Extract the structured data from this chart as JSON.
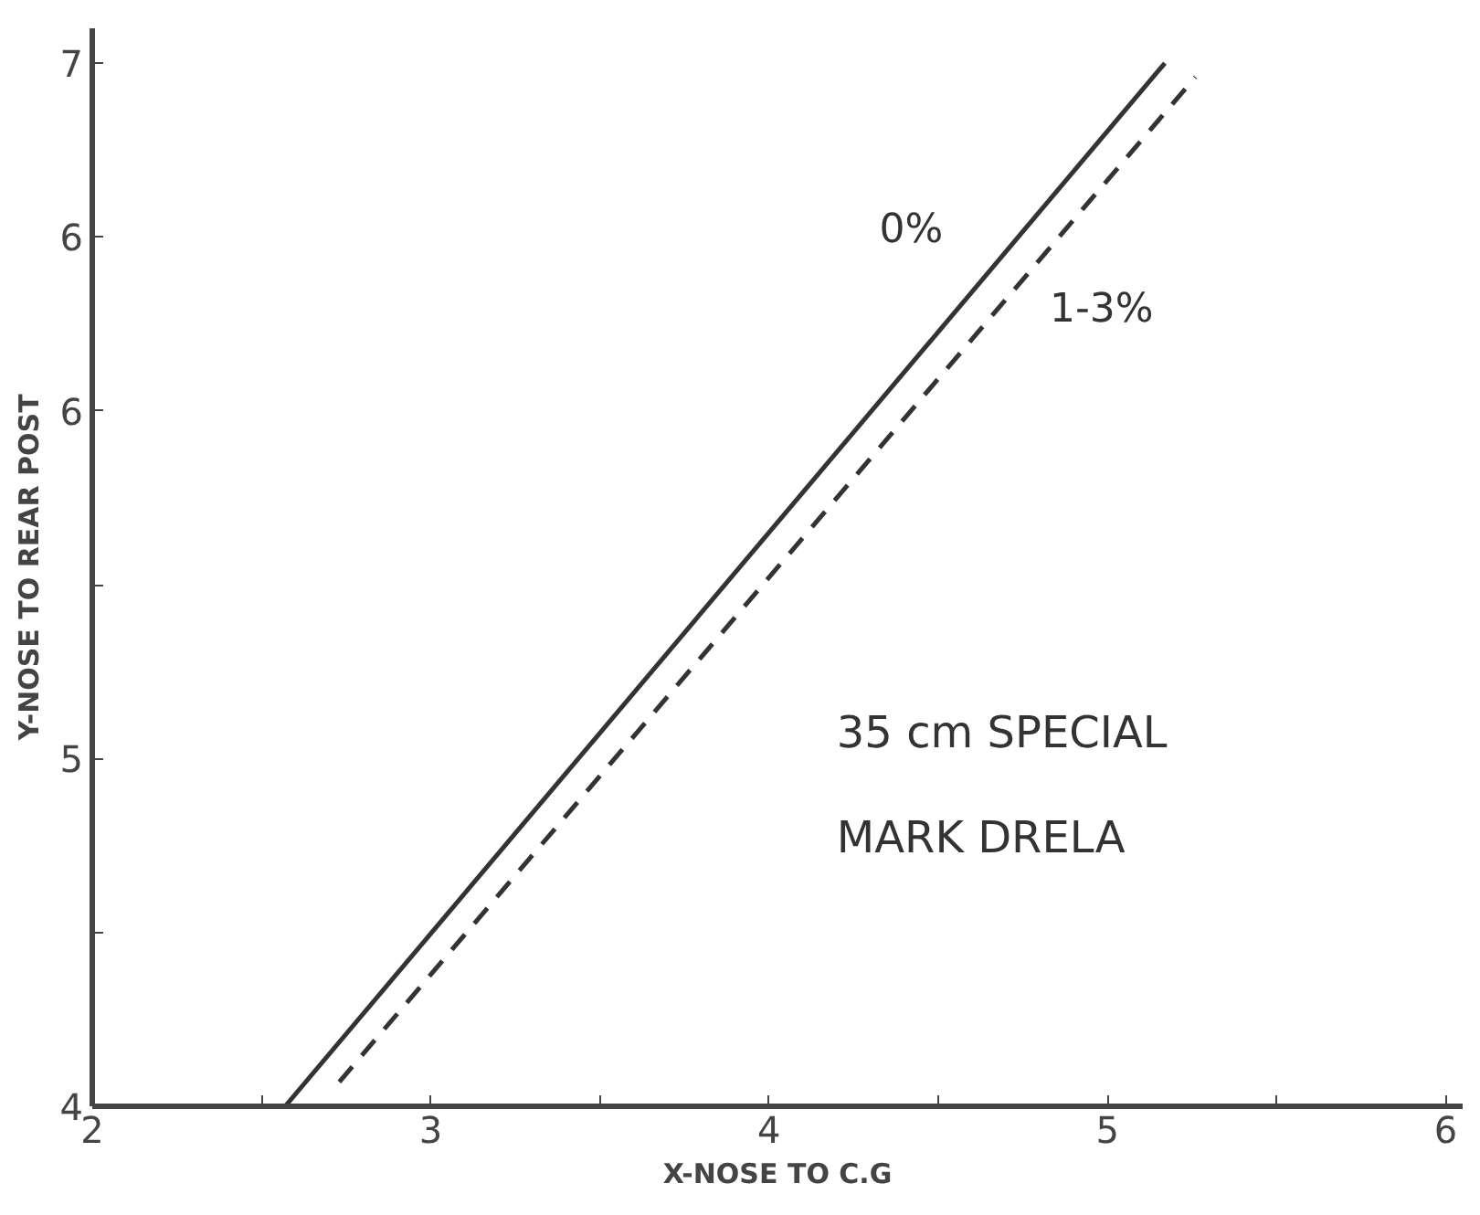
{
  "chart_data": {
    "type": "line",
    "xlabel": "X-NOSE TO C.G",
    "ylabel": "Y-NOSE TO REAR POST",
    "xlim": [
      2,
      6.05
    ],
    "ylim": [
      4,
      7.1
    ],
    "xticks": [
      2,
      {
        "value": 2.5,
        "label": null
      },
      3,
      {
        "value": 3.5,
        "label": null
      },
      4,
      {
        "value": 4.5,
        "label": null
      },
      5,
      {
        "value": 5.5,
        "label": null
      },
      6
    ],
    "yticks": [
      4,
      {
        "value": 4.5,
        "label": null
      },
      5,
      {
        "value": 5.5,
        "label": null
      },
      6,
      {
        "value": 6.5,
        "label": "6"
      },
      7
    ],
    "grid": false,
    "series": [
      {
        "name": "0%",
        "color": "#333333",
        "line_style": "solid",
        "x": [
          2.57,
          5.17
        ],
        "values": [
          4,
          7
        ]
      },
      {
        "name": "1-3%",
        "color": "#333333",
        "line_style": "dashed",
        "x": [
          2.73,
          5.26
        ],
        "values": [
          4.07,
          6.96
        ]
      }
    ],
    "annotations": [
      "35 cm SPECIAL",
      "MARK DRELA"
    ]
  }
}
